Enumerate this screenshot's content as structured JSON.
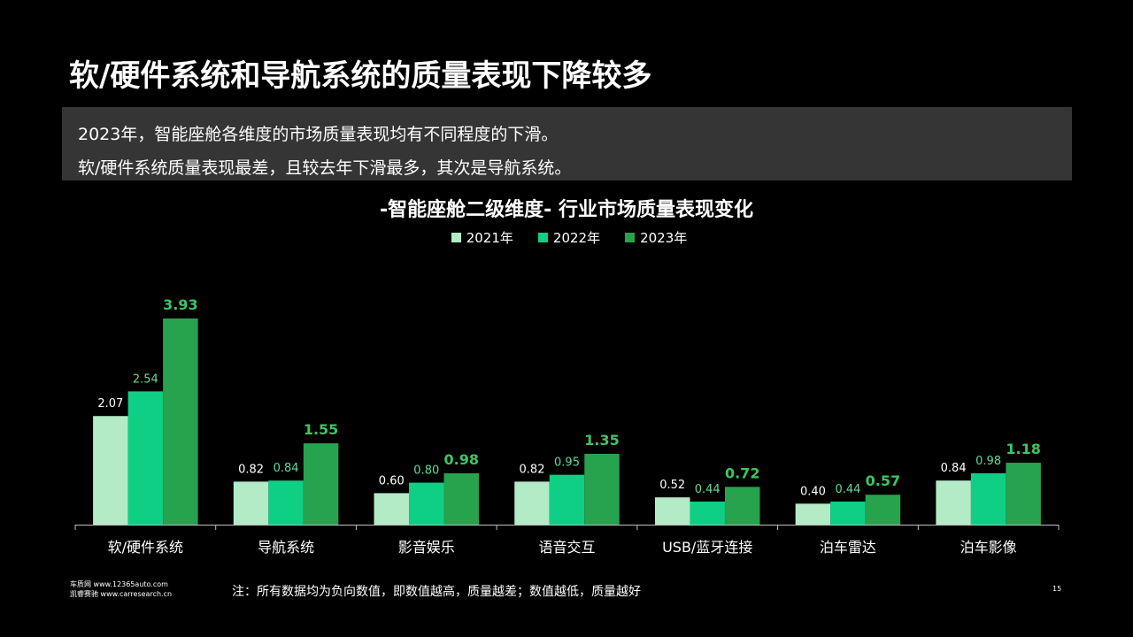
{
  "title": "软/硬件系统和导航系统的质量表现下降较多",
  "summary": {
    "line1": "2023年，智能座舱各维度的市场质量表现均有不同程度的下滑。",
    "line2": "软/硬件系统质量表现最差，且较去年下滑最多，其次是导航系统。"
  },
  "colors": {
    "s2021": "#b3ebc7",
    "s2022": "#0fcf85",
    "s2023": "#27a24d",
    "label2021": "#ffffff",
    "label2022": "#5fdc96",
    "label2023": "#3ec463"
  },
  "chart_data": {
    "type": "bar",
    "title": "-智能座舱二级维度- 行业市场质量表现变化",
    "categories": [
      "软/硬件系统",
      "导航系统",
      "影音娱乐",
      "语音交互",
      "USB/蓝牙连接",
      "泊车雷达",
      "泊车影像"
    ],
    "series": [
      {
        "name": "2021年",
        "values": [
          2.07,
          0.82,
          0.6,
          0.82,
          0.52,
          0.4,
          0.84
        ],
        "labels": [
          "2.07",
          "0.82",
          "0.60",
          "0.82",
          "0.52",
          "0.40",
          "0.84"
        ]
      },
      {
        "name": "2022年",
        "values": [
          2.54,
          0.84,
          0.8,
          0.95,
          0.44,
          0.44,
          0.98
        ],
        "labels": [
          "2.54",
          "0.84",
          "0.80",
          "0.95",
          "0.44",
          "0.44",
          "0.98"
        ]
      },
      {
        "name": "2023年",
        "values": [
          3.93,
          1.55,
          0.98,
          1.35,
          0.72,
          0.57,
          1.18
        ],
        "labels": [
          "3.93",
          "1.55",
          "0.98",
          "1.35",
          "0.72",
          "0.57",
          "1.18"
        ]
      }
    ],
    "legend_position": "top-center",
    "grid": false,
    "xlabel": "",
    "ylabel": ""
  },
  "footer": {
    "source_line1": "车质网 www.12365auto.com",
    "source_line2": "凯睿赛驰 www.carresearch.cn",
    "note": "注：所有数据均为负向数值，即数值越高，质量越差；数值越低，质量越好",
    "page": "15"
  }
}
